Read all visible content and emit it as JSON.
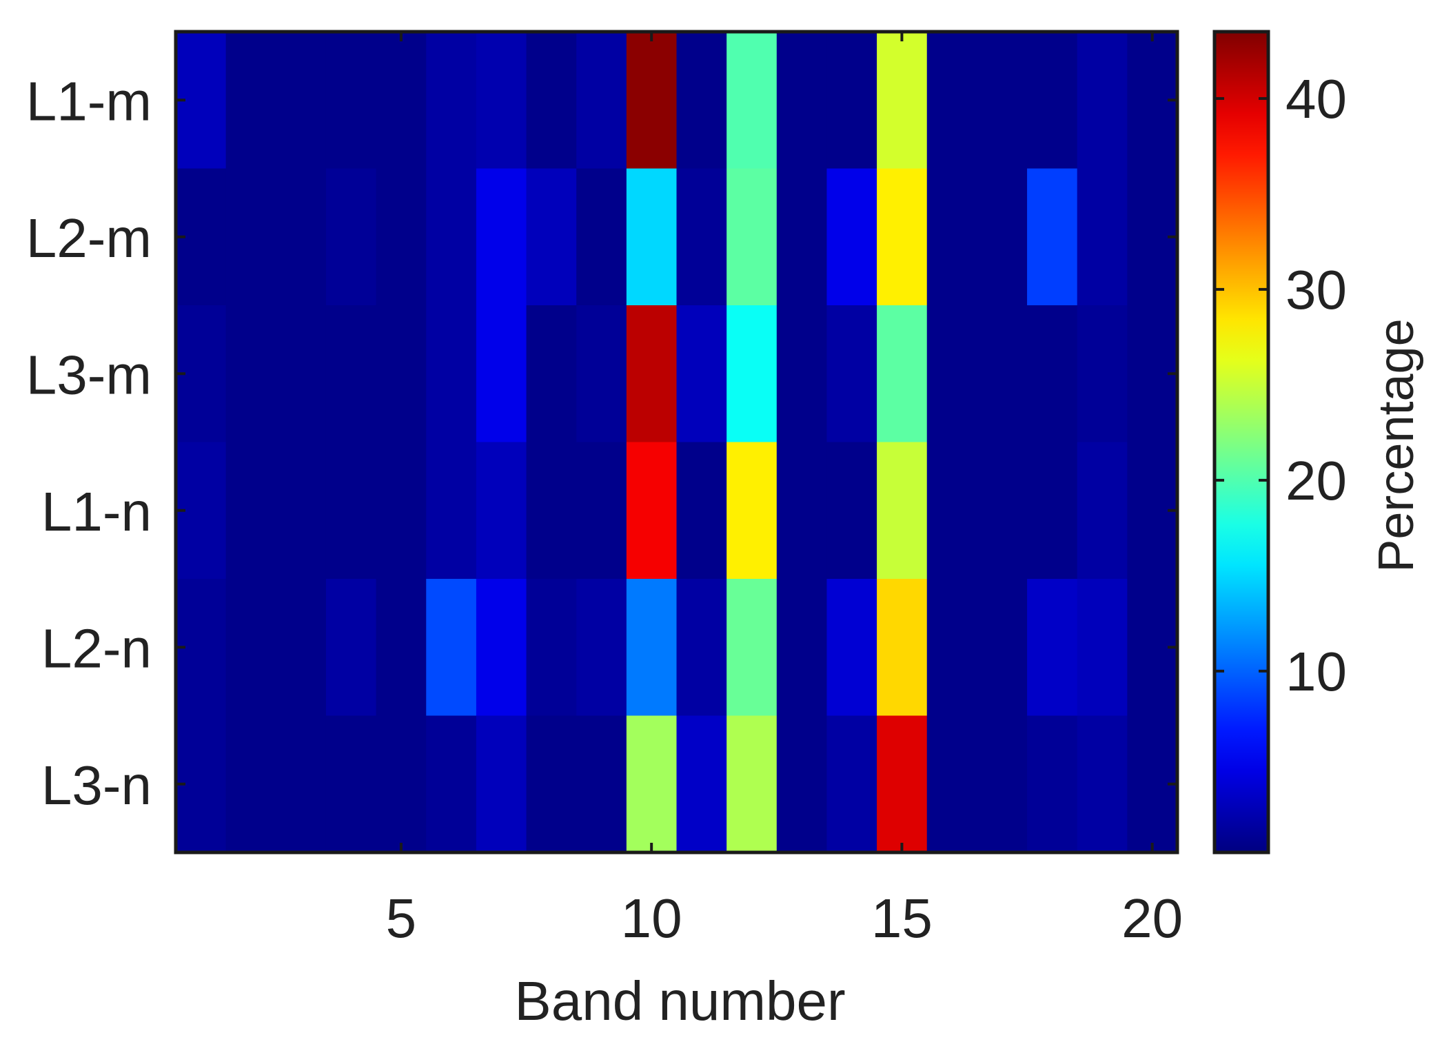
{
  "chart_data": {
    "type": "heatmap",
    "title": "",
    "xlabel": "Band number",
    "ylabel": "",
    "rows": [
      "L1-m",
      "L2-m",
      "L3-m",
      "L1-n",
      "L2-n",
      "L3-n"
    ],
    "x": [
      1,
      2,
      3,
      4,
      5,
      6,
      7,
      8,
      9,
      10,
      11,
      12,
      13,
      14,
      15,
      16,
      17,
      18,
      19,
      20
    ],
    "x_ticks": [
      5,
      10,
      15,
      20
    ],
    "xlim": [
      0.5,
      20.5
    ],
    "values": [
      [
        3.0,
        1.0,
        1.0,
        1.0,
        1.0,
        2.0,
        2.5,
        1.0,
        2.0,
        43.0,
        1.0,
        20.0,
        1.0,
        1.0,
        25.5,
        1.0,
        1.0,
        1.0,
        2.0,
        1.0
      ],
      [
        1.0,
        1.0,
        1.0,
        1.5,
        1.0,
        2.0,
        5.0,
        3.0,
        1.0,
        15.0,
        1.5,
        20.5,
        1.0,
        5.0,
        28.0,
        1.0,
        1.0,
        8.5,
        2.0,
        1.0
      ],
      [
        1.5,
        1.0,
        1.0,
        1.0,
        1.0,
        2.0,
        5.0,
        1.0,
        1.5,
        41.0,
        3.0,
        17.0,
        1.0,
        2.0,
        20.5,
        1.0,
        1.0,
        1.0,
        1.5,
        1.0
      ],
      [
        2.0,
        1.0,
        1.0,
        1.0,
        1.0,
        2.0,
        3.0,
        1.0,
        1.0,
        38.5,
        1.0,
        28.0,
        1.0,
        1.0,
        25.0,
        1.0,
        1.0,
        1.0,
        2.0,
        1.0
      ],
      [
        1.5,
        1.0,
        1.0,
        2.0,
        1.0,
        9.0,
        5.0,
        1.5,
        2.0,
        11.0,
        2.0,
        21.0,
        1.0,
        4.0,
        29.0,
        1.0,
        1.0,
        3.5,
        3.0,
        1.0
      ],
      [
        1.5,
        1.0,
        1.0,
        1.0,
        1.0,
        1.5,
        3.0,
        1.0,
        1.0,
        23.5,
        3.5,
        24.0,
        1.0,
        2.0,
        39.5,
        1.0,
        1.0,
        1.5,
        2.0,
        1.0
      ]
    ],
    "colorbar": {
      "label": "Percentage",
      "ticks": [
        10,
        20,
        30,
        40
      ],
      "range": [
        0.5,
        43.5
      ],
      "colormap": "jet"
    },
    "grid": false
  }
}
